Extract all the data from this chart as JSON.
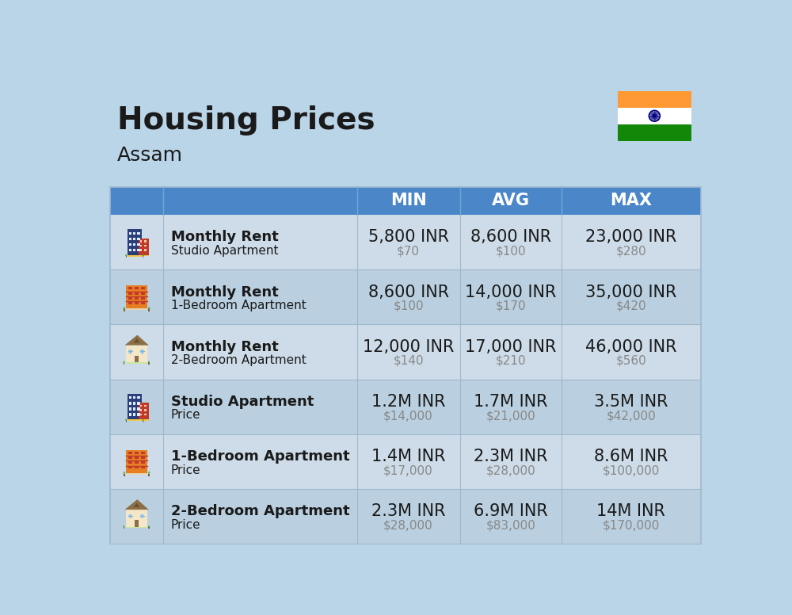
{
  "title": "Housing Prices",
  "subtitle": "Assam",
  "background_color": "#bad4e8",
  "header_color": "#5b9bd5",
  "header_text_color": "#ffffff",
  "row_bg_colors": [
    "#cddce8",
    "#bad0e0"
  ],
  "col_headers": [
    "MIN",
    "AVG",
    "MAX"
  ],
  "rows": [
    {
      "bold_label": "Monthly Rent",
      "sub_label": "Studio Apartment",
      "min_inr": "5,800 INR",
      "min_usd": "$70",
      "avg_inr": "8,600 INR",
      "avg_usd": "$100",
      "max_inr": "23,000 INR",
      "max_usd": "$280",
      "icon_type": "blue_office"
    },
    {
      "bold_label": "Monthly Rent",
      "sub_label": "1-Bedroom Apartment",
      "min_inr": "8,600 INR",
      "min_usd": "$100",
      "avg_inr": "14,000 INR",
      "avg_usd": "$170",
      "max_inr": "35,000 INR",
      "max_usd": "$420",
      "icon_type": "orange_building"
    },
    {
      "bold_label": "Monthly Rent",
      "sub_label": "2-Bedroom Apartment",
      "min_inr": "12,000 INR",
      "min_usd": "$140",
      "avg_inr": "17,000 INR",
      "avg_usd": "$210",
      "max_inr": "46,000 INR",
      "max_usd": "$560",
      "icon_type": "house_building"
    },
    {
      "bold_label": "Studio Apartment",
      "sub_label": "Price",
      "min_inr": "1.2M INR",
      "min_usd": "$14,000",
      "avg_inr": "1.7M INR",
      "avg_usd": "$21,000",
      "max_inr": "3.5M INR",
      "max_usd": "$42,000",
      "icon_type": "blue_office"
    },
    {
      "bold_label": "1-Bedroom Apartment",
      "sub_label": "Price",
      "min_inr": "1.4M INR",
      "min_usd": "$17,000",
      "avg_inr": "2.3M INR",
      "avg_usd": "$28,000",
      "max_inr": "8.6M INR",
      "max_usd": "$100,000",
      "icon_type": "orange_building"
    },
    {
      "bold_label": "2-Bedroom Apartment",
      "sub_label": "Price",
      "min_inr": "2.3M INR",
      "min_usd": "$28,000",
      "avg_inr": "6.9M INR",
      "avg_usd": "$83,000",
      "max_inr": "14M INR",
      "max_usd": "$170,000",
      "icon_type": "house_building"
    }
  ],
  "divider_color": "#a0b8cc",
  "text_dark": "#1a1a1a",
  "text_gray": "#888888",
  "cell_value_fontsize": 15,
  "cell_usd_fontsize": 11
}
